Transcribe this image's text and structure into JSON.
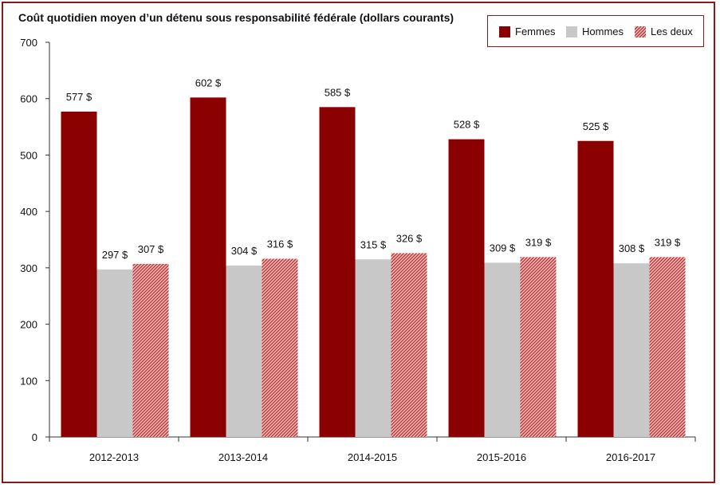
{
  "chart_data": {
    "type": "bar",
    "title": "Coût quotidien moyen d’un détenu sous responsabilité fédérale (dollars courants)",
    "categories": [
      "2012-2013",
      "2013-2014",
      "2014-2015",
      "2015-2016",
      "2016-2017"
    ],
    "series": [
      {
        "name": "Femmes",
        "values": [
          577,
          602,
          585,
          528,
          525
        ],
        "labels": [
          "577 $",
          "602 $",
          "585 $",
          "528 $",
          "525 $"
        ],
        "color": "#8b0000"
      },
      {
        "name": "Hommes",
        "values": [
          297,
          304,
          315,
          309,
          308
        ],
        "labels": [
          "297 $",
          "304 $",
          "315 $",
          "309 $",
          "308 $"
        ],
        "color": "#c8c8c8"
      },
      {
        "name": "Les deux",
        "values": [
          307,
          316,
          326,
          319,
          319
        ],
        "labels": [
          "307 $",
          "316 $",
          "326 $",
          "319 $",
          "319 $"
        ],
        "color": "#b22222",
        "pattern": "hatched"
      }
    ],
    "ylim": [
      0,
      700
    ],
    "yticks": [
      "0",
      "100",
      "200",
      "300",
      "400",
      "500",
      "600",
      "700"
    ],
    "xlabel": "",
    "ylabel": "",
    "grid": false,
    "legend_position": "top-right"
  },
  "colors": {
    "frame": "#8b1a1a",
    "axis": "#333333"
  }
}
